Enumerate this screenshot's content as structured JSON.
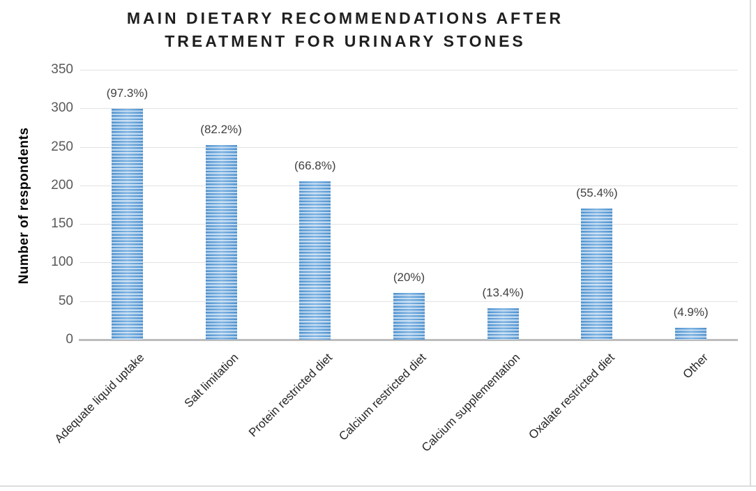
{
  "chart_data": {
    "type": "bar",
    "title": "MAIN DIETARY RECOMMENDATIONS AFTER TREATMENT FOR URINARY STONES",
    "title_lines": [
      "MAIN DIETARY RECOMMENDATIONS AFTER",
      "TREATMENT FOR URINARY STONES"
    ],
    "xlabel": "",
    "ylabel": "Number of respondents",
    "categories": [
      "Adequate liquid uptake",
      "Salt limitation",
      "Protein restricted diet",
      "Calcium restricted diet",
      "Calcium supplementation",
      "Oxalate restricted diet",
      "Other"
    ],
    "values": [
      299,
      252,
      205,
      61,
      41,
      170,
      15
    ],
    "point_labels": [
      "(97.3%)",
      "(82.2%)",
      "(66.8%)",
      "(20%)",
      "(13.4%)",
      "(55.4%)",
      "(4.9%)"
    ],
    "ylim": [
      0,
      350
    ],
    "yticks": [
      0,
      50,
      100,
      150,
      200,
      250,
      300,
      350
    ],
    "grid": true,
    "legend_position": "none",
    "bar_color": "#5b9bd5",
    "gridline_color": "#e2e2e2",
    "axis_line_color": "#bcbcbc",
    "tick_label_color": "#595959",
    "data_label_color": "#404040"
  }
}
